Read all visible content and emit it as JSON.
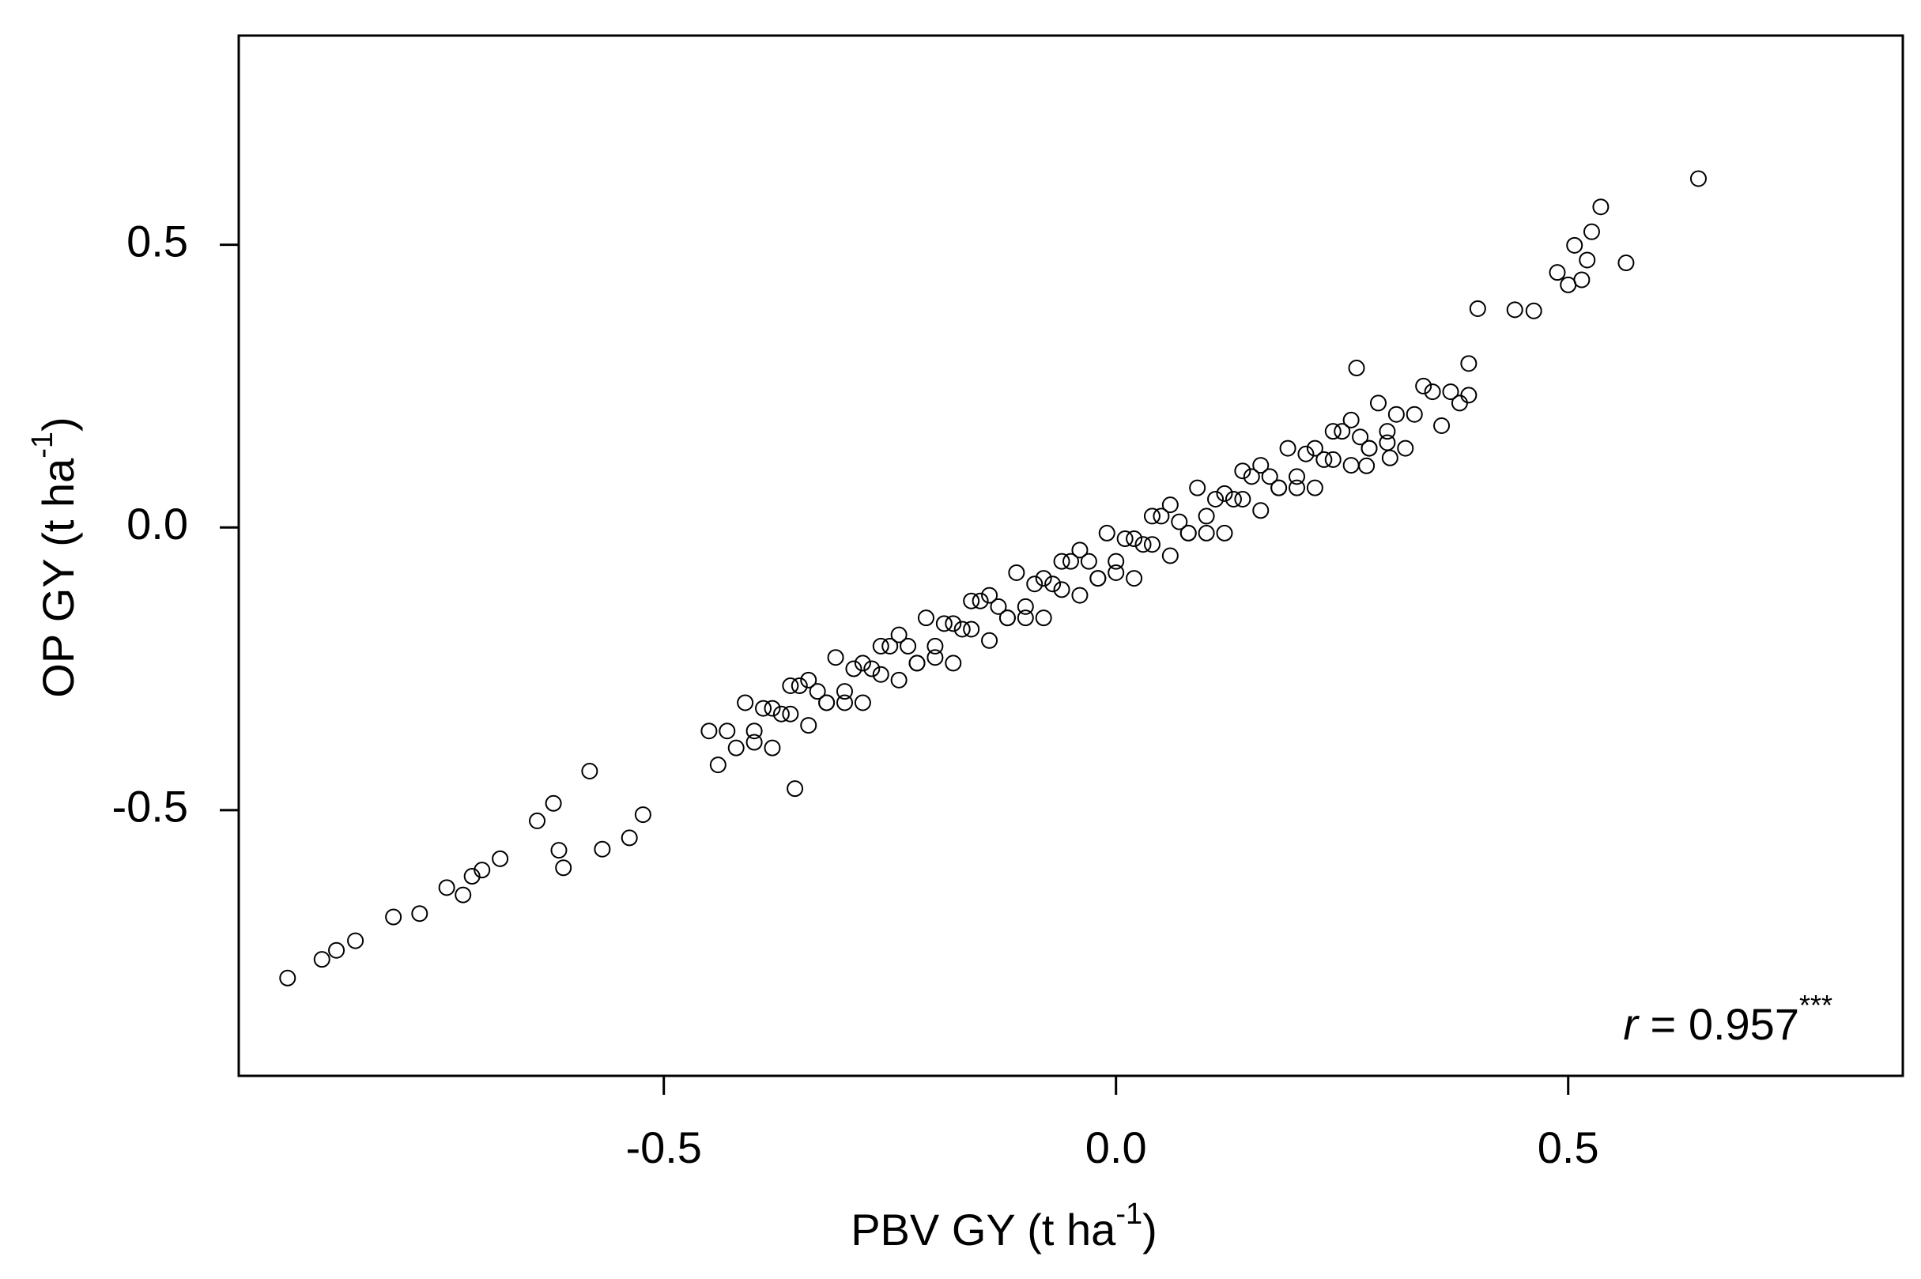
{
  "chart_data": {
    "type": "scatter",
    "xlabel": {
      "text": "PBV GY (t ha",
      "sup": "-1",
      "end": ")"
    },
    "ylabel": {
      "text": "OP GY (t ha",
      "sup": "-1",
      "end": ")"
    },
    "annotation": {
      "var": "r",
      "text": " = 0.957",
      "sup": "***"
    },
    "xlim": [
      -0.97,
      0.87
    ],
    "ylim": [
      -0.97,
      0.87
    ],
    "xticks": [
      -0.5,
      {
        "value": 0,
        "label": "0.0"
      },
      0.5
    ],
    "yticks": [
      -0.5,
      {
        "value": 0,
        "label": "0.0"
      },
      0.5
    ],
    "color": "#000000",
    "x": [
      -0.45,
      -0.44,
      -0.43,
      -0.42,
      -0.41,
      -0.4,
      -0.39,
      -0.38,
      -0.37,
      -0.36,
      -0.35,
      -0.34,
      -0.33,
      -0.32,
      -0.31,
      -0.3,
      -0.29,
      -0.28,
      -0.27,
      -0.26,
      -0.25,
      -0.24,
      -0.23,
      -0.22,
      -0.21,
      -0.2,
      -0.19,
      -0.18,
      -0.17,
      -0.16,
      -0.15,
      -0.14,
      -0.13,
      -0.12,
      -0.11,
      -0.1,
      -0.09,
      -0.08,
      -0.07,
      -0.06,
      -0.05,
      -0.04,
      -0.03,
      -0.02,
      -0.01,
      0.0,
      0.01,
      0.02,
      0.03,
      0.04,
      0.05,
      0.06,
      0.07,
      0.08,
      0.09,
      0.1,
      0.11,
      0.12,
      0.13,
      0.14,
      0.15,
      0.16,
      0.17,
      0.18,
      0.19,
      0.2,
      0.21,
      0.22,
      0.23,
      0.24,
      0.25,
      0.26,
      0.27,
      0.28,
      0.29,
      0.3,
      0.31,
      0.32,
      0.33,
      0.34,
      0.35,
      0.36,
      0.37,
      0.38,
      0.39,
      -0.4,
      -0.38,
      -0.36,
      -0.34,
      -0.32,
      -0.3,
      -0.28,
      -0.26,
      -0.24,
      -0.22,
      -0.2,
      -0.18,
      -0.16,
      -0.14,
      -0.12,
      -0.1,
      -0.08,
      -0.06,
      -0.04,
      -0.02,
      0.0,
      0.02,
      0.04,
      0.06,
      0.08,
      0.1,
      0.12,
      0.14,
      0.16,
      0.18,
      0.2,
      0.22,
      0.24,
      0.26,
      0.28,
      0.3,
      0.644,
      0.536,
      0.526,
      0.507,
      0.521,
      0.564,
      0.488,
      0.5,
      0.515,
      0.462,
      0.441,
      0.4,
      -0.916,
      -0.878,
      -0.862,
      -0.841,
      -0.799,
      -0.77,
      -0.74,
      -0.722,
      -0.712,
      -0.701,
      -0.681,
      -0.64,
      -0.622,
      -0.611,
      -0.616,
      -0.568,
      -0.538,
      -0.582,
      -0.523,
      -0.355,
      0.39,
      0.303,
      0.277,
      0.266
    ],
    "values": [
      -0.36,
      -0.42,
      -0.36,
      -0.39,
      -0.31,
      -0.36,
      -0.32,
      -0.39,
      -0.33,
      -0.28,
      -0.28,
      -0.35,
      -0.29,
      -0.31,
      -0.23,
      -0.29,
      -0.25,
      -0.31,
      -0.25,
      -0.21,
      -0.21,
      -0.27,
      -0.21,
      -0.24,
      -0.16,
      -0.21,
      -0.17,
      -0.24,
      -0.18,
      -0.13,
      -0.13,
      -0.2,
      -0.14,
      -0.16,
      -0.08,
      -0.14,
      -0.1,
      -0.16,
      -0.1,
      -0.06,
      -0.06,
      -0.12,
      -0.06,
      -0.09,
      -0.01,
      -0.06,
      -0.02,
      -0.09,
      -0.03,
      0.02,
      0.02,
      -0.05,
      0.01,
      -0.01,
      0.07,
      0.02,
      0.05,
      -0.01,
      0.05,
      0.1,
      0.09,
      0.03,
      0.09,
      0.07,
      0.14,
      0.09,
      0.13,
      0.07,
      0.12,
      0.17,
      0.17,
      0.11,
      0.16,
      0.14,
      0.22,
      0.17,
      0.2,
      0.14,
      0.2,
      0.25,
      0.24,
      0.18,
      0.24,
      0.22,
      0.29,
      -0.38,
      -0.32,
      -0.33,
      -0.27,
      -0.31,
      -0.31,
      -0.24,
      -0.26,
      -0.19,
      -0.24,
      -0.23,
      -0.17,
      -0.18,
      -0.12,
      -0.16,
      -0.16,
      -0.09,
      -0.11,
      -0.04,
      -0.09,
      -0.08,
      -0.02,
      -0.03,
      0.04,
      -0.01,
      -0.01,
      0.06,
      0.05,
      0.11,
      0.07,
      0.07,
      0.14,
      0.12,
      0.19,
      0.14,
      0.15,
      0.617,
      0.567,
      0.523,
      0.499,
      0.473,
      0.468,
      0.451,
      0.429,
      0.438,
      0.383,
      0.385,
      0.387,
      -0.797,
      -0.764,
      -0.748,
      -0.731,
      -0.689,
      -0.683,
      -0.637,
      -0.65,
      -0.617,
      -0.606,
      -0.586,
      -0.519,
      -0.488,
      -0.602,
      -0.571,
      -0.569,
      -0.549,
      -0.431,
      -0.508,
      -0.462,
      0.234,
      0.123,
      0.109,
      0.282
    ]
  }
}
